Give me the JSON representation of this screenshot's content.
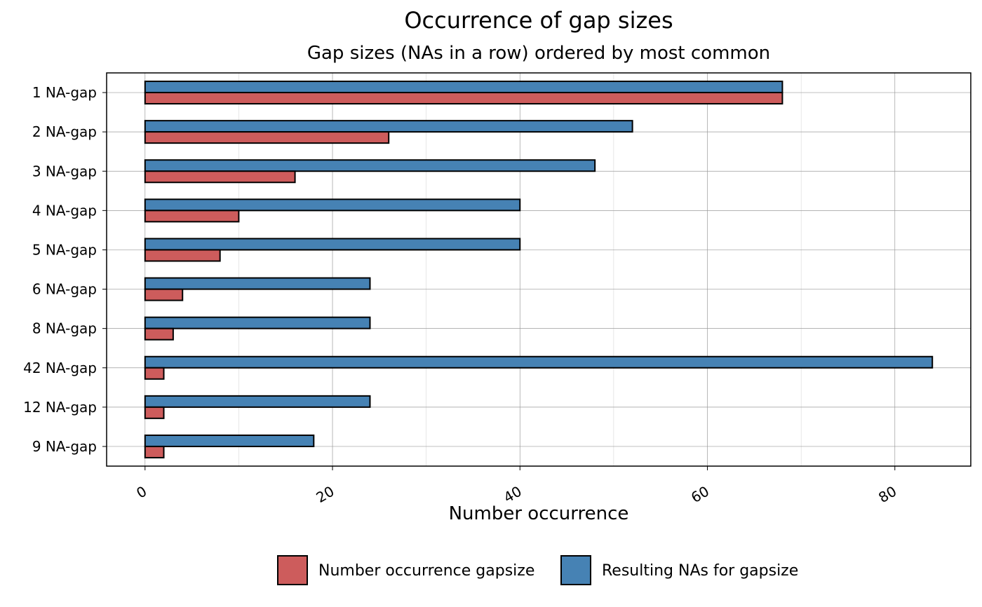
{
  "chart_data": {
    "type": "bar",
    "orientation": "horizontal",
    "title": "Occurrence of gap sizes",
    "subtitle": "Gap sizes (NAs in a row) ordered by most common",
    "xlabel": "Number occurrence",
    "ylabel": "",
    "categories": [
      "1 NA-gap",
      "2 NA-gap",
      "3 NA-gap",
      "4 NA-gap",
      "5 NA-gap",
      "6 NA-gap",
      "8 NA-gap",
      "42 NA-gap",
      "12 NA-gap",
      "9 NA-gap"
    ],
    "series": [
      {
        "name": "Number occurrence gapsize",
        "color": "#CD5C5C",
        "values": [
          68,
          26,
          16,
          10,
          8,
          4,
          3,
          2,
          2,
          2
        ]
      },
      {
        "name": "Resulting NAs for gapsize",
        "color": "#4682B4",
        "values": [
          68,
          52,
          48,
          40,
          40,
          24,
          24,
          84,
          24,
          18
        ]
      }
    ],
    "xlim": [
      -4.1,
      88.1
    ],
    "xticks": [
      0,
      20,
      40,
      60,
      80
    ],
    "grid": true,
    "legend_position": "bottom"
  }
}
